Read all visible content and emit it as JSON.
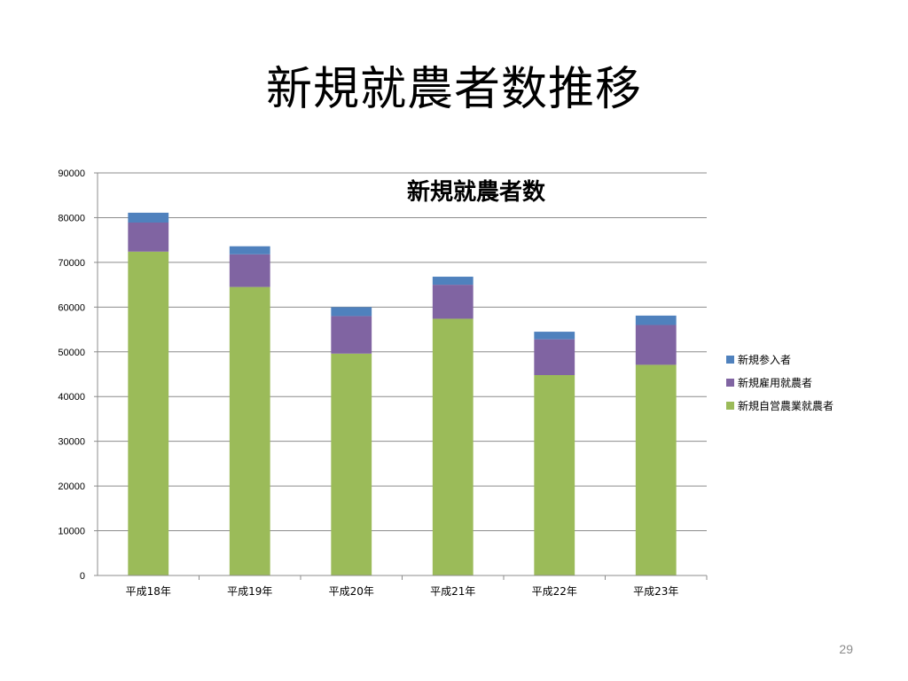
{
  "slide": {
    "title": "新規就農者数推移",
    "page_number": "29"
  },
  "chart_data": {
    "type": "bar",
    "stacked": true,
    "title": "新規就農者数",
    "categories": [
      "平成18年",
      "平成19年",
      "平成20年",
      "平成21年",
      "平成22年",
      "平成23年"
    ],
    "series": [
      {
        "name": "新規自営農業就農者",
        "color": "#9BBB59",
        "values": [
          72400,
          64500,
          49600,
          57400,
          44800,
          47100
        ]
      },
      {
        "name": "新規雇用就農者",
        "color": "#8064A2",
        "values": [
          6500,
          7300,
          8400,
          7600,
          8000,
          8900
        ]
      },
      {
        "name": "新規参入者",
        "color": "#4F81BD",
        "values": [
          2200,
          1800,
          2000,
          1800,
          1700,
          2100
        ]
      }
    ],
    "ylim": [
      0,
      90000
    ],
    "yticks": [
      0,
      10000,
      20000,
      30000,
      40000,
      50000,
      60000,
      70000,
      80000,
      90000
    ],
    "grid": true,
    "legend": "right",
    "legend_order": [
      "新規参入者",
      "新規雇用就農者",
      "新規自営農業就農者"
    ]
  }
}
